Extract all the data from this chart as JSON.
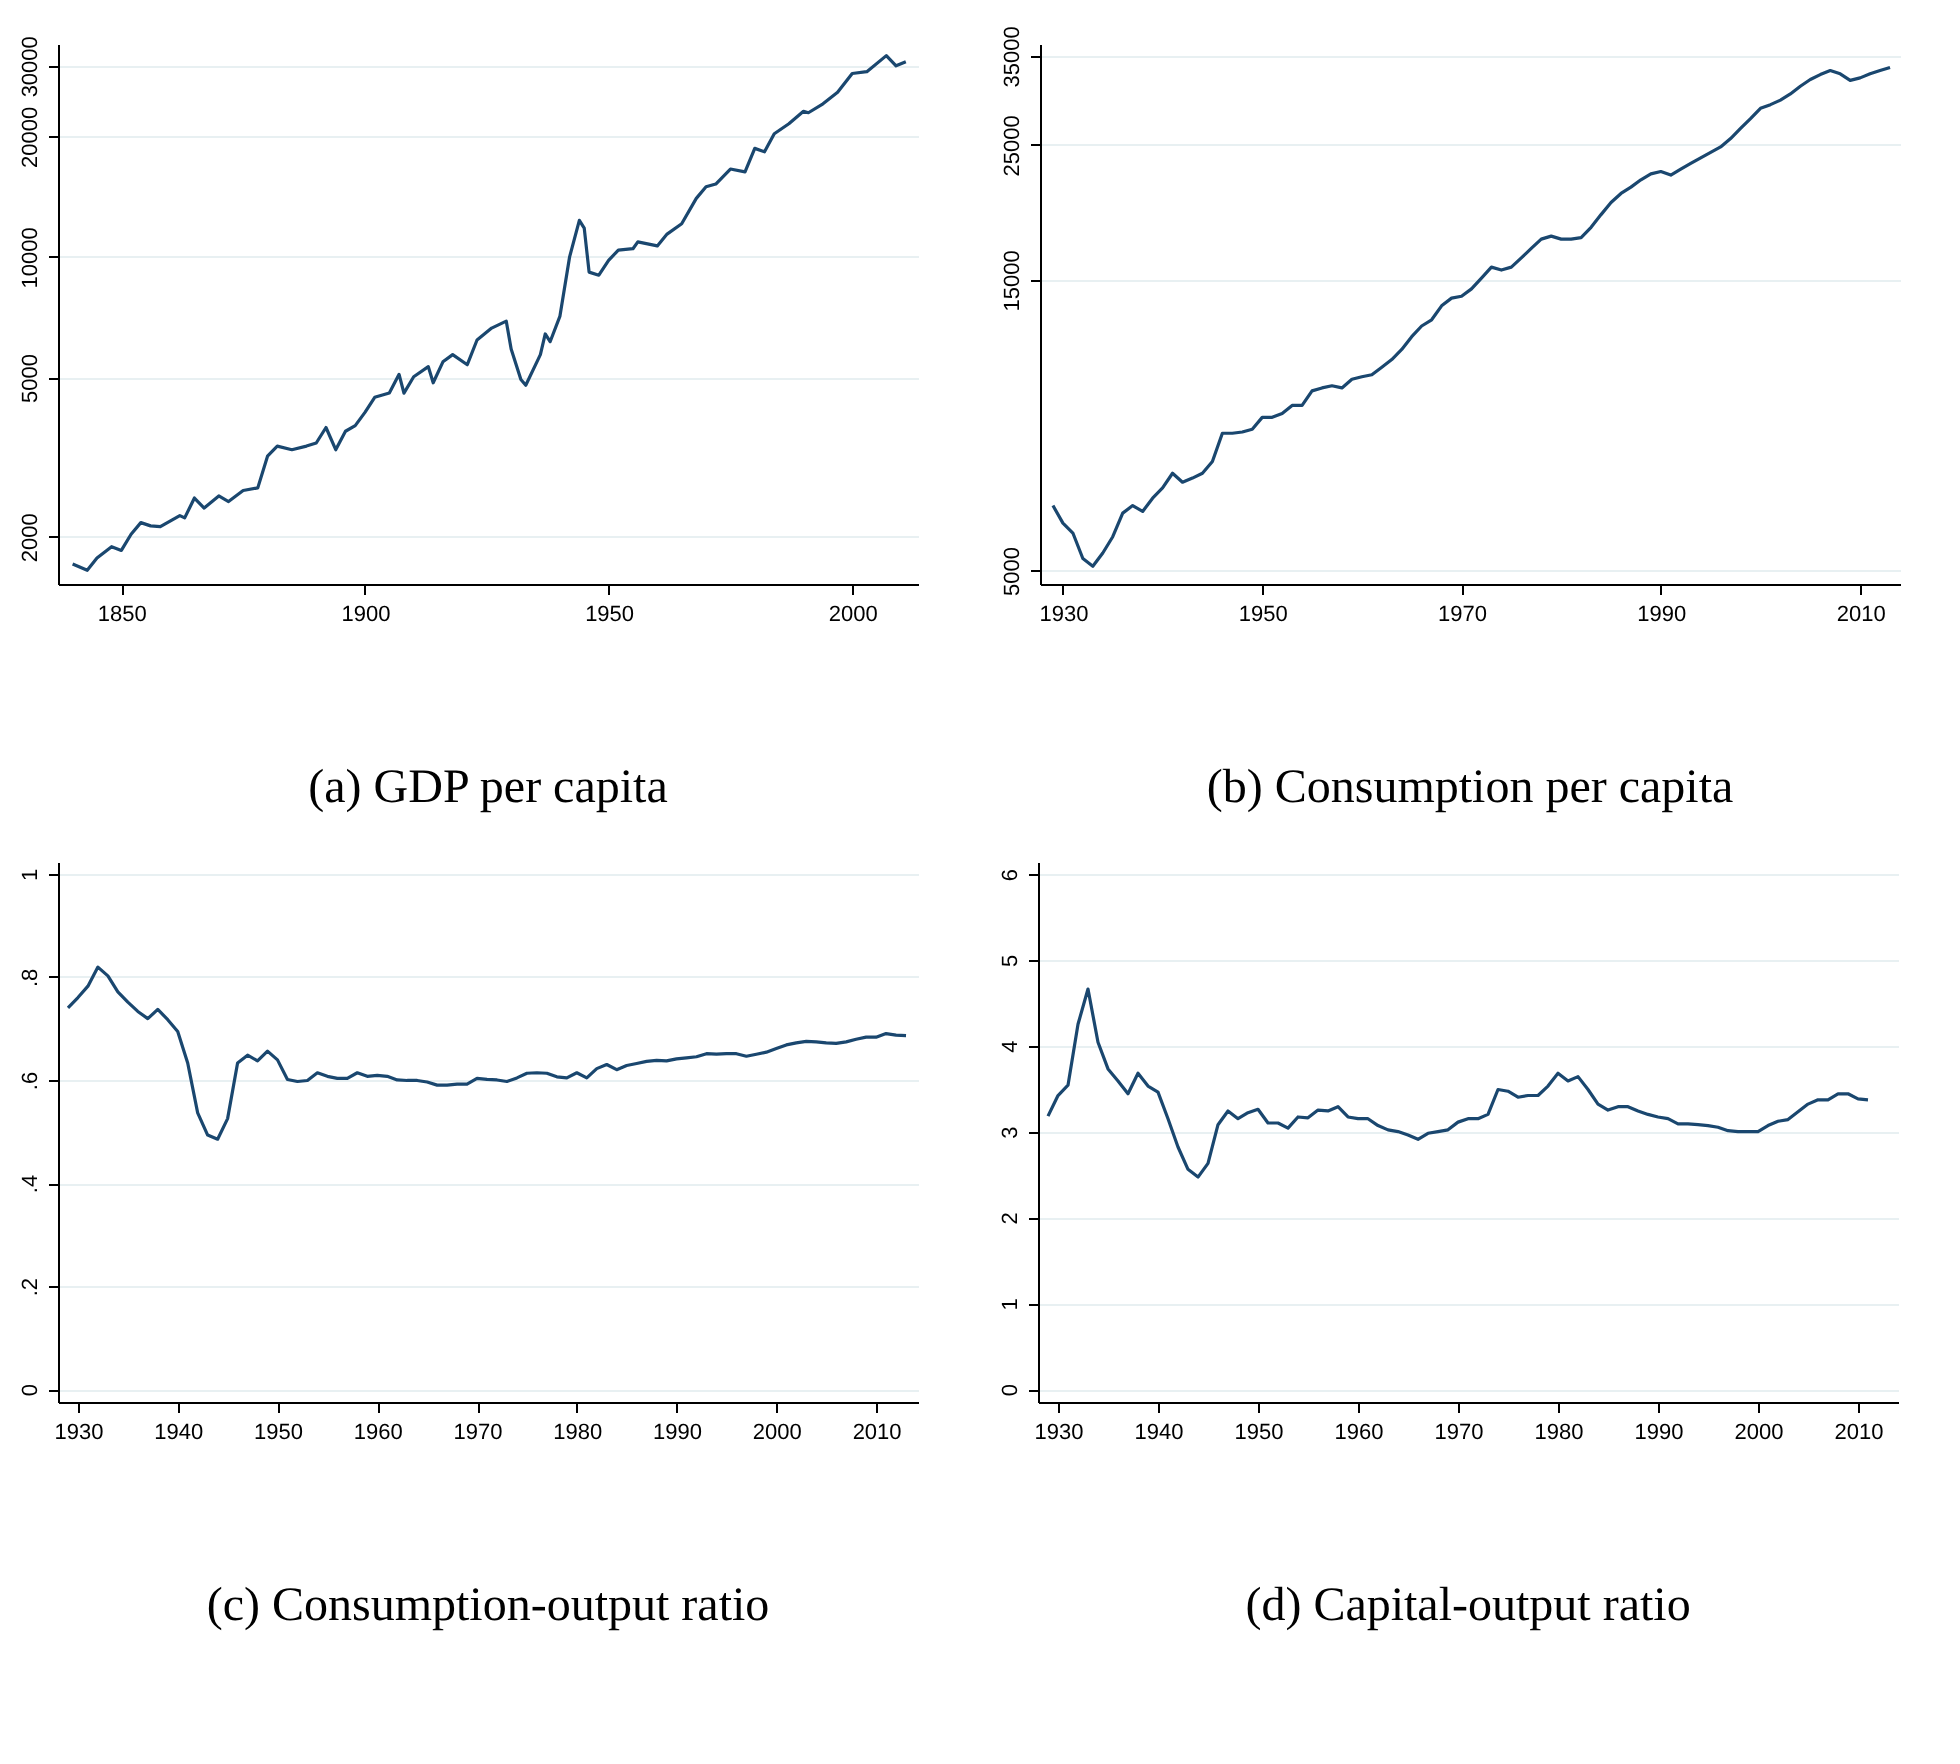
{
  "chart_data": [
    {
      "type": "line",
      "title": "(a) GDP per capita",
      "log": "y",
      "grid": "y",
      "xlim": [
        1837,
        2013.5
      ],
      "xticks": [
        1850,
        1900,
        1950,
        2000
      ],
      "ylim": [
        1525,
        34000
      ],
      "yticks": [
        2000,
        5000,
        10000,
        20000,
        30000
      ],
      "x": [
        1840,
        1843,
        1845,
        1848,
        1850,
        1852,
        1854,
        1856,
        1858,
        1862,
        1863,
        1865,
        1867,
        1870,
        1872,
        1875,
        1878,
        1880,
        1882,
        1885,
        1888,
        1890,
        1892,
        1894,
        1896,
        1898,
        1900,
        1902,
        1905,
        1907,
        1908,
        1910,
        1913,
        1914,
        1916,
        1918,
        1921,
        1923,
        1926,
        1929,
        1930,
        1932,
        1933,
        1936,
        1937,
        1938,
        1940,
        1942,
        1944,
        1945,
        1946,
        1948,
        1950,
        1952,
        1955,
        1956,
        1960,
        1962,
        1965,
        1968,
        1970,
        1972,
        1975,
        1978,
        1980,
        1982,
        1984,
        1987,
        1990,
        1991,
        1994,
        1997,
        2000,
        2003,
        2007,
        2009,
        2011
      ],
      "series": [
        {
          "color": "#1a476f",
          "values": [
            1710,
            1650,
            1770,
            1890,
            1850,
            2030,
            2170,
            2130,
            2120,
            2260,
            2230,
            2500,
            2360,
            2530,
            2450,
            2610,
            2650,
            3180,
            3370,
            3300,
            3370,
            3430,
            3750,
            3300,
            3670,
            3790,
            4090,
            4460,
            4570,
            5090,
            4570,
            5020,
            5320,
            4850,
            5470,
            5700,
            5380,
            6200,
            6640,
            6910,
            5890,
            4940,
            4780,
            5700,
            6420,
            6140,
            7100,
            10000,
            12340,
            11800,
            9160,
            9000,
            9800,
            10400,
            10480,
            10900,
            10650,
            11400,
            12100,
            14000,
            14960,
            15200,
            16570,
            16300,
            18660,
            18300,
            20300,
            21500,
            23100,
            22900,
            24100,
            25750,
            28700,
            29000,
            31800,
            30000,
            30700
          ]
        }
      ]
    },
    {
      "type": "line",
      "title": "(b) Consumption per capita",
      "log": "y",
      "grid": "y",
      "xlim": [
        1927.7,
        2014
      ],
      "xticks": [
        1930,
        1950,
        1970,
        1990,
        2010
      ],
      "ylim": [
        4750,
        36600
      ],
      "yticks": [
        5000,
        15000,
        25000,
        35000
      ],
      "x": [
        1929,
        1930,
        1931,
        1932,
        1933,
        1934,
        1935,
        1936,
        1937,
        1938,
        1939,
        1940,
        1941,
        1942,
        1943,
        1944,
        1945,
        1946,
        1947,
        1948,
        1949,
        1950,
        1951,
        1952,
        1953,
        1954,
        1955,
        1956,
        1957,
        1958,
        1959,
        1960,
        1961,
        1962,
        1963,
        1964,
        1965,
        1966,
        1967,
        1968,
        1969,
        1970,
        1971,
        1972,
        1973,
        1974,
        1975,
        1976,
        1977,
        1978,
        1979,
        1980,
        1981,
        1982,
        1983,
        1984,
        1985,
        1986,
        1987,
        1988,
        1989,
        1990,
        1991,
        1992,
        1993,
        1994,
        1995,
        1996,
        1997,
        1998,
        1999,
        2000,
        2001,
        2002,
        2003,
        2004,
        2005,
        2006,
        2007,
        2008,
        2009,
        2010,
        2011,
        2012,
        2013
      ],
      "series": [
        {
          "color": "#1a476f",
          "values": [
            6390,
            5980,
            5760,
            5230,
            5080,
            5340,
            5680,
            6210,
            6390,
            6250,
            6570,
            6830,
            7220,
            6980,
            7090,
            7220,
            7550,
            8400,
            8400,
            8440,
            8530,
            8920,
            8920,
            9050,
            9330,
            9330,
            9860,
            9970,
            10050,
            9970,
            10300,
            10400,
            10480,
            10780,
            11100,
            11530,
            12100,
            12600,
            12900,
            13600,
            14000,
            14100,
            14500,
            15100,
            15740,
            15570,
            15740,
            16300,
            16900,
            17500,
            17700,
            17500,
            17500,
            17600,
            18300,
            19200,
            20100,
            20800,
            21300,
            21900,
            22400,
            22600,
            22300,
            22800,
            23300,
            23800,
            24300,
            24800,
            25600,
            26600,
            27600,
            28700,
            29100,
            29600,
            30300,
            31200,
            32000,
            32600,
            33100,
            32700,
            31900,
            32200,
            32700,
            33100,
            33500
          ]
        }
      ]
    },
    {
      "type": "line",
      "title": "(c) Consumption-output ratio",
      "grid": "y",
      "xlim": [
        1928,
        2014.2
      ],
      "xticks": [
        1930,
        1940,
        1950,
        1960,
        1970,
        1980,
        1990,
        2000,
        2010
      ],
      "ylim": [
        -0.025,
        1.023
      ],
      "yticks": [
        0,
        {
          "value": 0.2,
          "label": ".2"
        },
        {
          "value": 0.4,
          "label": ".4"
        },
        {
          "value": 0.6,
          "label": ".6"
        },
        {
          "value": 0.8,
          "label": ".8"
        },
        1
      ],
      "x": [
        1929,
        1930,
        1931,
        1932,
        1933,
        1934,
        1935,
        1936,
        1937,
        1938,
        1939,
        1940,
        1941,
        1942,
        1943,
        1944,
        1945,
        1946,
        1947,
        1948,
        1949,
        1950,
        1951,
        1952,
        1953,
        1954,
        1955,
        1956,
        1957,
        1958,
        1959,
        1960,
        1961,
        1962,
        1963,
        1964,
        1965,
        1966,
        1967,
        1968,
        1969,
        1970,
        1971,
        1972,
        1973,
        1974,
        1975,
        1976,
        1977,
        1978,
        1979,
        1980,
        1981,
        1982,
        1983,
        1984,
        1985,
        1986,
        1987,
        1988,
        1989,
        1990,
        1991,
        1992,
        1993,
        1994,
        1995,
        1996,
        1997,
        1998,
        1999,
        2000,
        2001,
        2002,
        2003,
        2004,
        2005,
        2006,
        2007,
        2008,
        2009,
        2010,
        2011,
        2012,
        2013
      ],
      "series": [
        {
          "color": "#1a476f",
          "values": [
            0.74,
            0.76,
            0.782,
            0.819,
            0.802,
            0.771,
            0.751,
            0.733,
            0.719,
            0.737,
            0.717,
            0.694,
            0.633,
            0.536,
            0.493,
            0.485,
            0.525,
            0.633,
            0.648,
            0.637,
            0.656,
            0.639,
            0.601,
            0.597,
            0.599,
            0.614,
            0.607,
            0.603,
            0.603,
            0.614,
            0.607,
            0.609,
            0.607,
            0.6,
            0.599,
            0.599,
            0.596,
            0.59,
            0.59,
            0.592,
            0.592,
            0.603,
            0.601,
            0.6,
            0.597,
            0.604,
            0.613,
            0.614,
            0.613,
            0.606,
            0.604,
            0.614,
            0.604,
            0.622,
            0.63,
            0.62,
            0.628,
            0.632,
            0.636,
            0.638,
            0.637,
            0.641,
            0.643,
            0.645,
            0.651,
            0.65,
            0.651,
            0.651,
            0.646,
            0.65,
            0.654,
            0.661,
            0.668,
            0.672,
            0.675,
            0.674,
            0.672,
            0.671,
            0.674,
            0.679,
            0.683,
            0.683,
            0.69,
            0.687,
            0.686
          ]
        }
      ]
    },
    {
      "type": "line",
      "title": "(d) Capital-output ratio",
      "grid": "y",
      "xlim": [
        1928,
        2014
      ],
      "xticks": [
        1930,
        1940,
        1950,
        1960,
        1970,
        1980,
        1990,
        2000,
        2010
      ],
      "ylim": [
        -0.15,
        6.14
      ],
      "yticks": [
        0,
        1,
        2,
        3,
        4,
        5,
        6
      ],
      "x": [
        1929,
        1930,
        1931,
        1932,
        1933,
        1934,
        1935,
        1936,
        1937,
        1938,
        1939,
        1940,
        1941,
        1942,
        1943,
        1944,
        1945,
        1946,
        1947,
        1948,
        1949,
        1950,
        1951,
        1952,
        1953,
        1954,
        1955,
        1956,
        1957,
        1958,
        1959,
        1960,
        1961,
        1962,
        1963,
        1964,
        1965,
        1966,
        1967,
        1968,
        1969,
        1970,
        1971,
        1972,
        1973,
        1974,
        1975,
        1976,
        1977,
        1978,
        1979,
        1980,
        1981,
        1982,
        1983,
        1984,
        1985,
        1986,
        1987,
        1988,
        1989,
        1990,
        1991,
        1992,
        1993,
        1994,
        1995,
        1996,
        1997,
        1998,
        1999,
        2000,
        2001,
        2002,
        2003,
        2004,
        2005,
        2006,
        2007,
        2008,
        2009,
        2010,
        2011
      ],
      "series": [
        {
          "color": "#1a476f",
          "values": [
            3.18,
            3.42,
            3.54,
            4.25,
            4.66,
            4.04,
            3.73,
            3.59,
            3.44,
            3.68,
            3.53,
            3.46,
            3.15,
            2.82,
            2.56,
            2.47,
            2.63,
            3.08,
            3.24,
            3.15,
            3.22,
            3.26,
            3.1,
            3.1,
            3.04,
            3.17,
            3.16,
            3.25,
            3.24,
            3.29,
            3.17,
            3.15,
            3.15,
            3.07,
            3.02,
            3.0,
            2.96,
            2.91,
            2.98,
            3.0,
            3.02,
            3.11,
            3.15,
            3.15,
            3.2,
            3.49,
            3.47,
            3.4,
            3.42,
            3.42,
            3.53,
            3.68,
            3.59,
            3.64,
            3.49,
            3.32,
            3.25,
            3.29,
            3.29,
            3.24,
            3.2,
            3.17,
            3.15,
            3.09,
            3.09,
            3.08,
            3.07,
            3.05,
            3.01,
            3.0,
            3.0,
            3.0,
            3.07,
            3.12,
            3.14,
            3.23,
            3.32,
            3.37,
            3.37,
            3.44,
            3.44,
            3.38,
            3.37
          ]
        }
      ]
    }
  ]
}
